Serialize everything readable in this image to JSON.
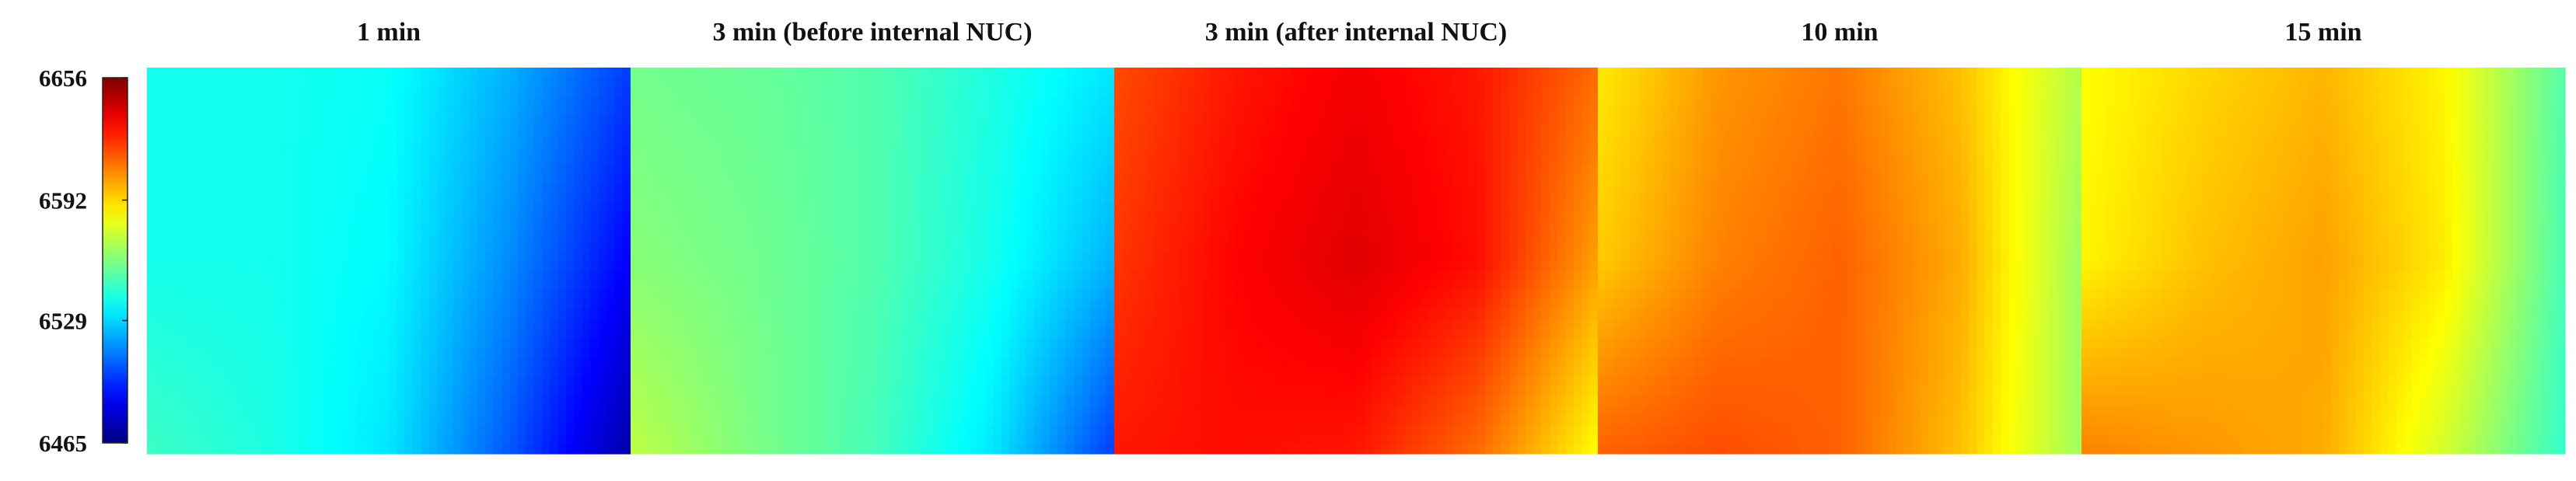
{
  "chart_data": {
    "type": "heatmap",
    "colormap": "jet",
    "colorbar": {
      "min": 6465,
      "max": 6656,
      "tick_labels": [
        "6656",
        "6592",
        "6529",
        "6465"
      ],
      "tick_values": [
        6656,
        6592,
        6529,
        6465
      ],
      "colormap_stops": [
        "#00008f",
        "#0000ff",
        "#00ffff",
        "#ffff00",
        "#ff0000",
        "#800000"
      ]
    },
    "panels": [
      {
        "title": "1 min",
        "value_field": {
          "rows": [
            "top",
            "middle",
            "bottom"
          ],
          "cols": [
            "left",
            "center-left",
            "center",
            "center-right",
            "right"
          ],
          "values": [
            [
              6540,
              6540,
              6538,
              6522,
              6500
            ],
            [
              6540,
              6540,
              6536,
              6515,
              6488
            ],
            [
              6548,
              6542,
              6532,
              6505,
              6472
            ]
          ]
        }
      },
      {
        "title": "3 min (before internal NUC)",
        "value_field": {
          "rows": [
            "top",
            "middle",
            "bottom"
          ],
          "cols": [
            "left",
            "center-left",
            "center",
            "center-right",
            "right"
          ],
          "values": [
            [
              6558,
              6556,
              6552,
              6542,
              6532
            ],
            [
              6562,
              6558,
              6552,
              6540,
              6522
            ],
            [
              6572,
              6560,
              6550,
              6532,
              6500
            ]
          ]
        }
      },
      {
        "title": "3 min (after internal NUC)",
        "value_field": {
          "rows": [
            "top",
            "middle",
            "bottom"
          ],
          "cols": [
            "left",
            "center-left",
            "center",
            "center-right",
            "right"
          ],
          "values": [
            [
              6618,
              6628,
              6634,
              6628,
              6612
            ],
            [
              6622,
              6632,
              6638,
              6630,
              6602
            ],
            [
              6628,
              6630,
              6628,
              6612,
              6584
            ]
          ]
        }
      },
      {
        "title": "10 min",
        "value_field": {
          "rows": [
            "top",
            "middle",
            "bottom"
          ],
          "cols": [
            "left",
            "center-left",
            "center",
            "center-right",
            "right"
          ],
          "values": [
            [
              6588,
              6604,
              6610,
              6596,
              6570
            ],
            [
              6594,
              6608,
              6614,
              6600,
              6566
            ],
            [
              6614,
              6618,
              6614,
              6596,
              6566
            ]
          ]
        }
      },
      {
        "title": "15 min",
        "value_field": {
          "rows": [
            "top",
            "middle",
            "bottom"
          ],
          "cols": [
            "left",
            "center-left",
            "center",
            "center-right",
            "right"
          ],
          "values": [
            [
              6584,
              6592,
              6598,
              6586,
              6552
            ],
            [
              6586,
              6596,
              6602,
              6588,
              6550
            ],
            [
              6608,
              6604,
              6600,
              6576,
              6546
            ]
          ]
        }
      }
    ]
  }
}
